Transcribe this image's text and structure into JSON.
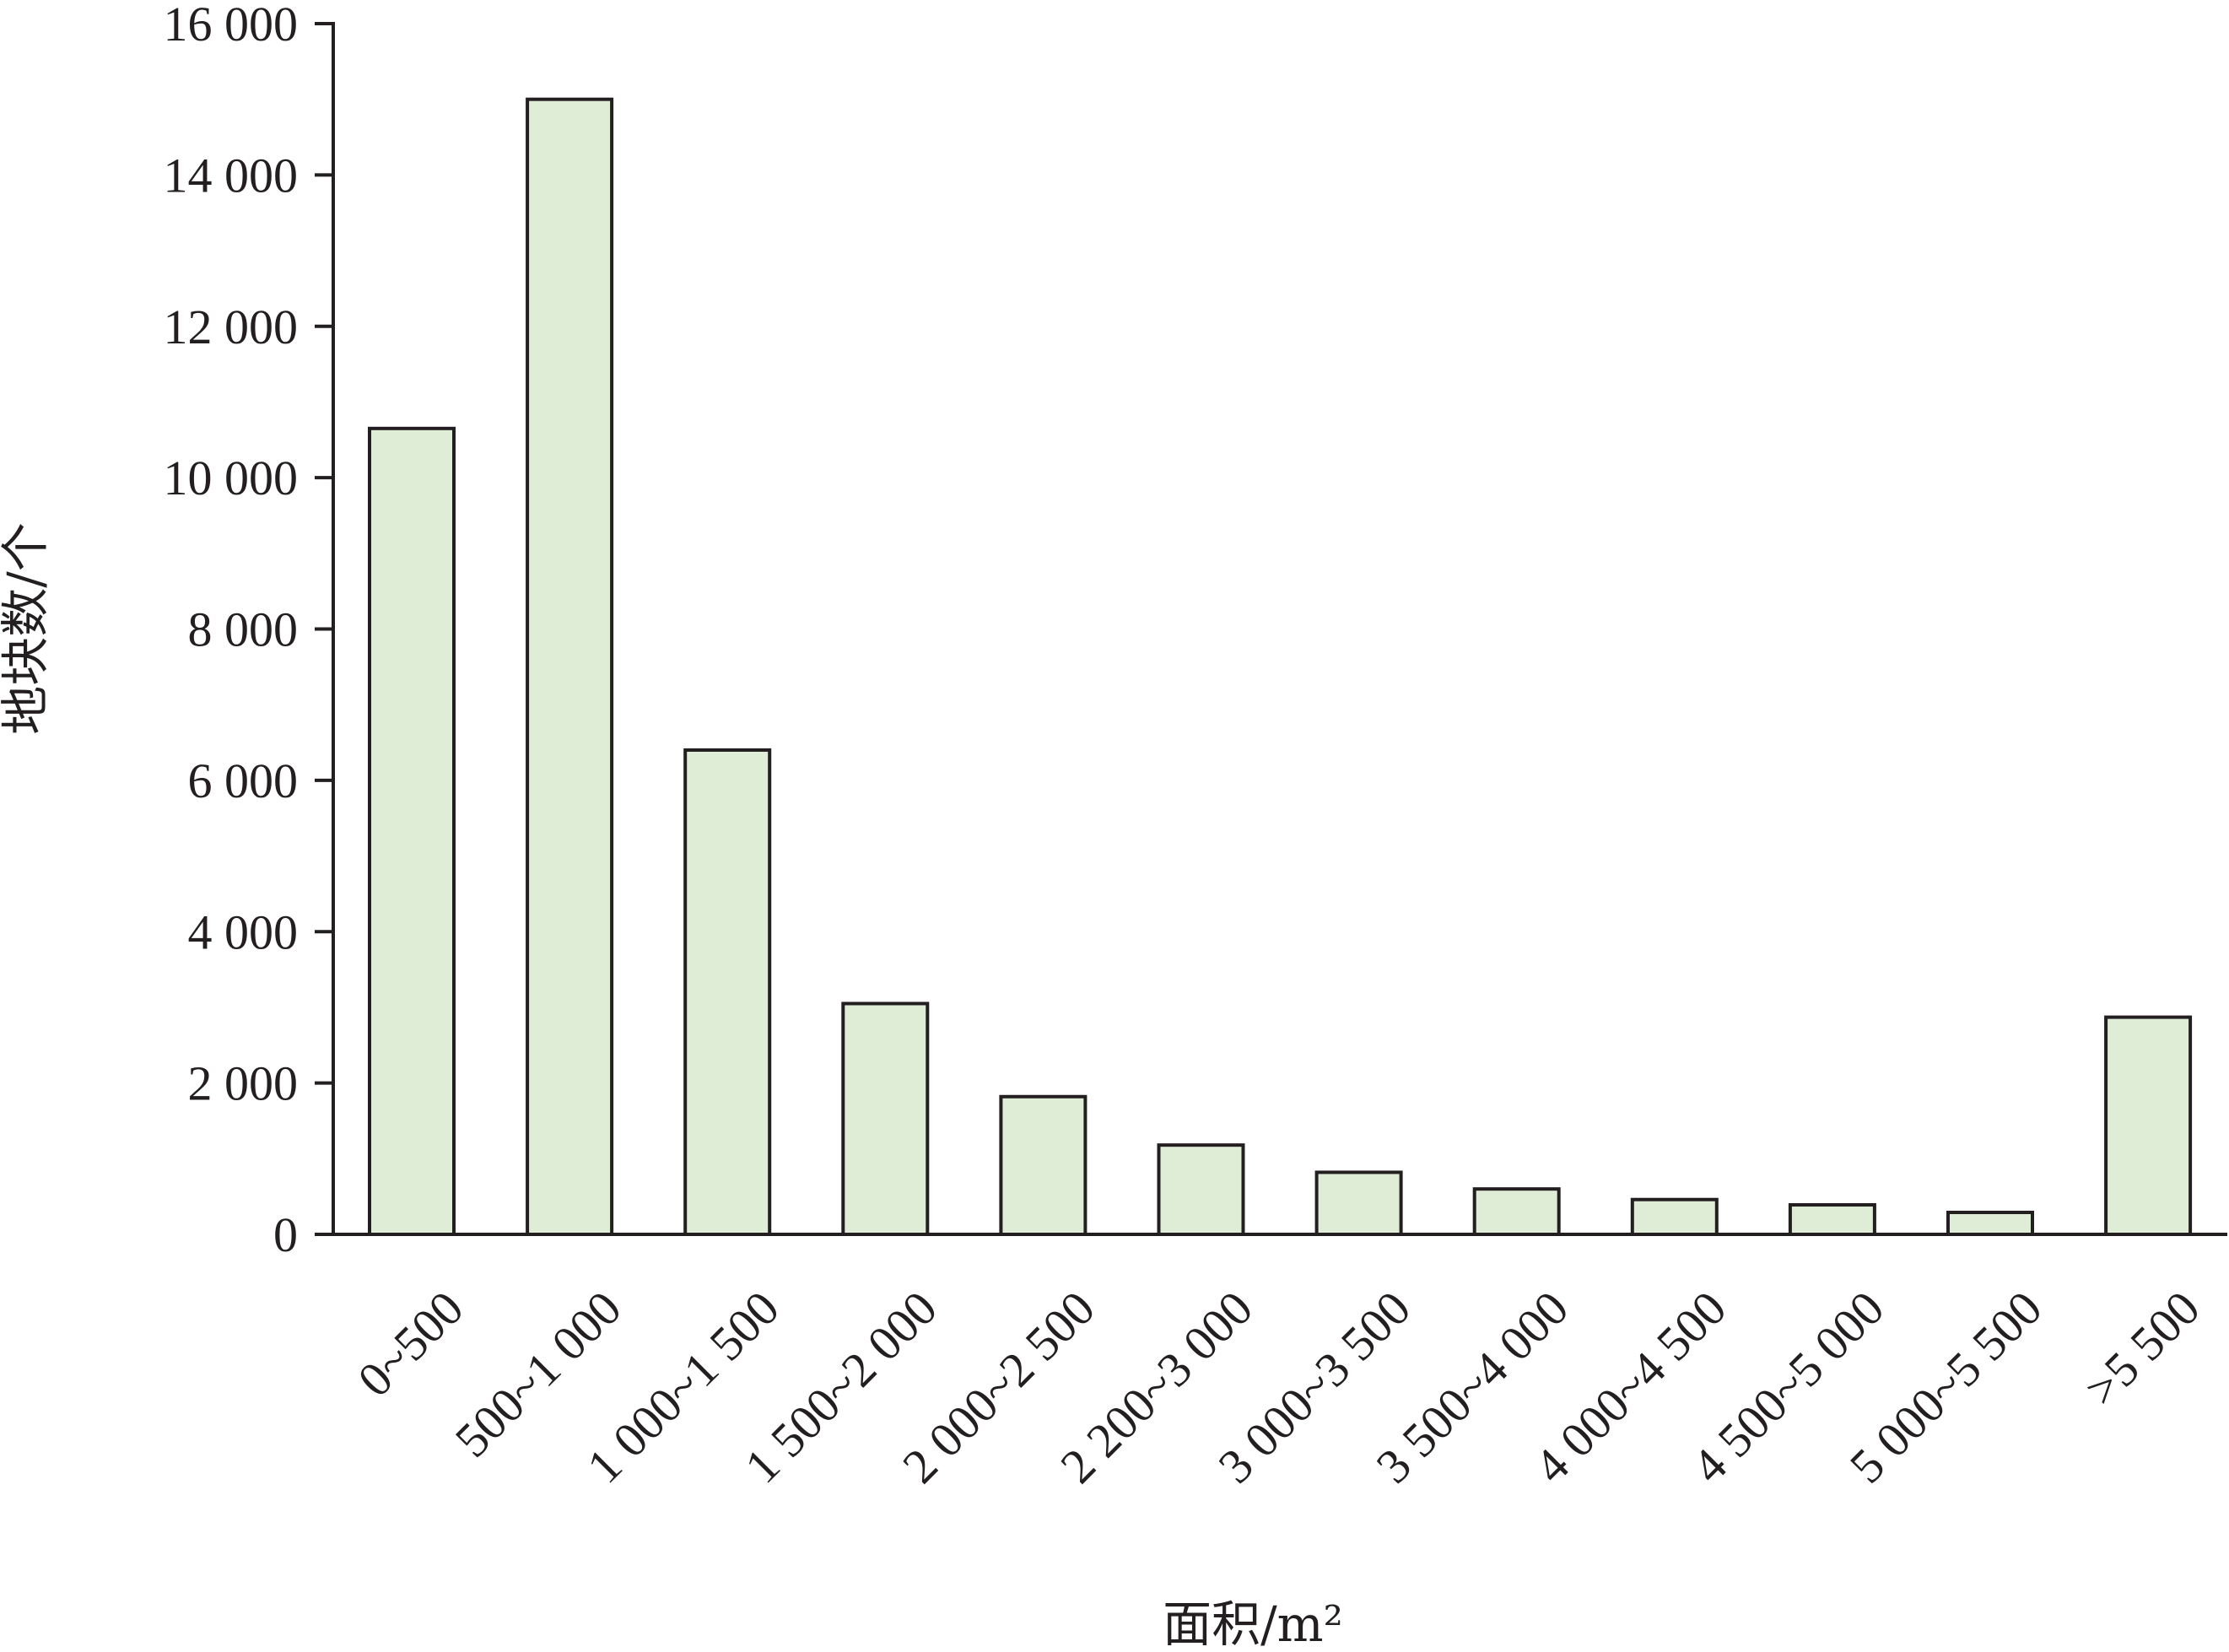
{
  "chart_data": {
    "type": "bar",
    "categories": [
      "0~500",
      "500~1 000",
      "1 000~1 500",
      "1 500~2 000",
      "2 000~2 500",
      "2 200~3 000",
      "3 000~3 500",
      "3 500~4 000",
      "4 000~4 500",
      "4 500~5 000",
      "5 000~5 500",
      ">5 500"
    ],
    "values": [
      10650,
      15000,
      6400,
      3050,
      1820,
      1180,
      820,
      600,
      460,
      390,
      290,
      2870
    ],
    "ylim": [
      0,
      16000
    ],
    "yticks": [
      0,
      2000,
      4000,
      6000,
      8000,
      10000,
      12000,
      14000,
      16000
    ],
    "ytick_labels": [
      "0",
      "2 000",
      "4 000",
      "6 000",
      "8 000",
      "10 000",
      "12 000",
      "14 000",
      "16 000"
    ],
    "xlabel": "面积/m²",
    "ylabel": "地块数/个",
    "title": "",
    "grid": false,
    "legend": "none",
    "colors": {
      "bar_fill": "#dfecd6",
      "bar_stroke": "#231f20",
      "axis": "#231f20"
    }
  }
}
